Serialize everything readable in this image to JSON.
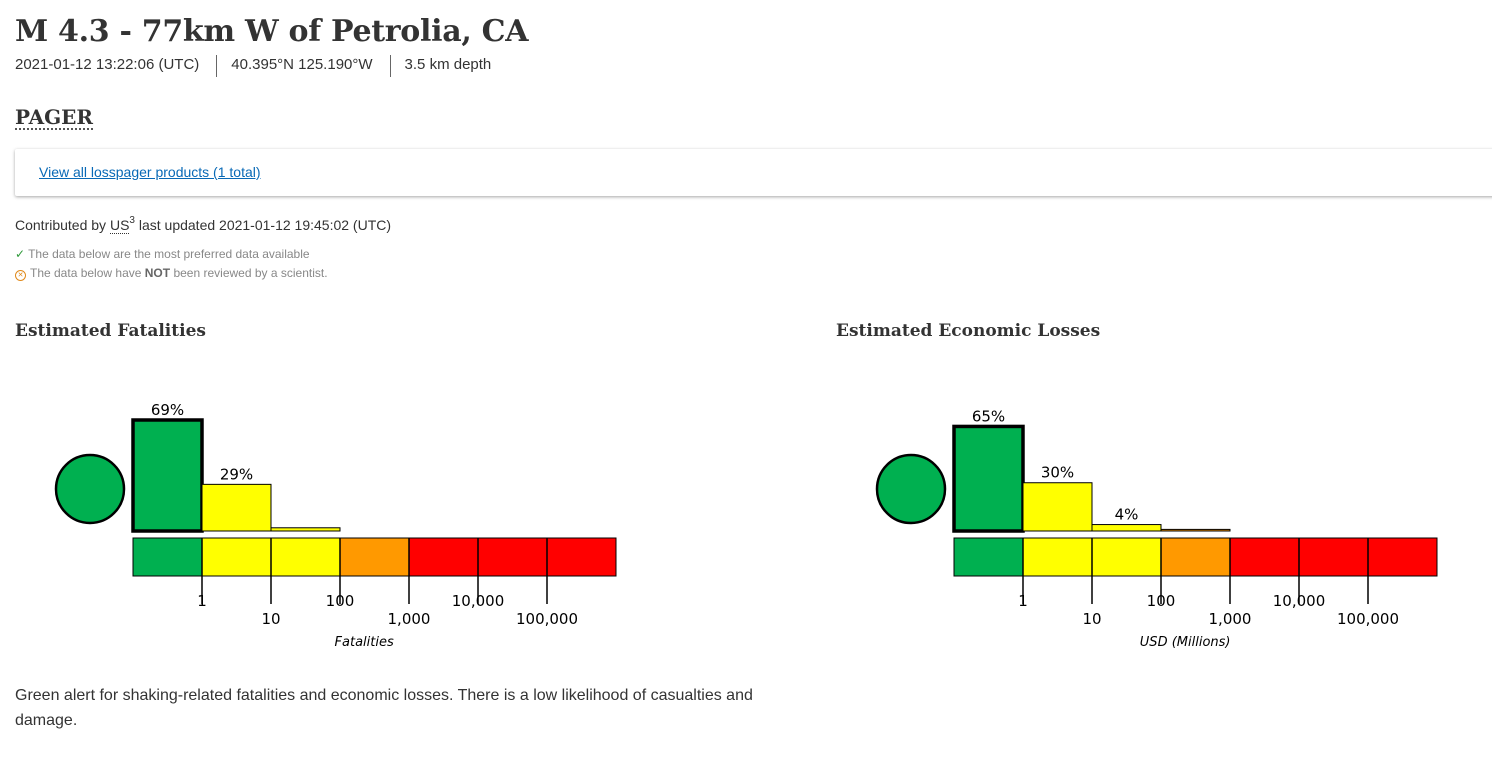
{
  "event": {
    "title": "M 4.3 - 77km W of Petrolia, CA",
    "time": "2021-01-12 13:22:06 (UTC)",
    "location": "40.395°N 125.190°W",
    "depth": "3.5 km depth"
  },
  "section": {
    "title": "PAGER",
    "products_link": "View all losspager products (1 total)",
    "contributed_prefix": "Contributed by",
    "contributor": "US",
    "contributor_sup": "3",
    "last_updated": "last updated 2021-01-12 19:45:02 (UTC)",
    "note_preferred": "The data below are the most preferred data available",
    "note_review_pre": "The data below have",
    "note_review_bold": "NOT",
    "note_review_post": "been reviewed by a scientist."
  },
  "colors": {
    "green": "#00b050",
    "yellow": "#ffff00",
    "orange": "#ff9900",
    "red": "#ff0000",
    "link": "#0869b6"
  },
  "chart_data": [
    {
      "type": "bar",
      "title": "Estimated Fatalities",
      "xlabel": "Fatalities",
      "alert_level": "green",
      "bins": [
        "0",
        "1-10",
        "10-100",
        "100-1,000",
        "1,000-10,000",
        "10,000-100,000",
        "100,000+"
      ],
      "bin_colors": [
        "green",
        "yellow",
        "yellow",
        "orange",
        "red",
        "red",
        "red"
      ],
      "values": [
        69,
        29,
        2,
        0,
        0,
        0,
        0
      ],
      "labels": [
        "69%",
        "29%",
        "",
        "",
        "",
        "",
        ""
      ],
      "highlight_index": 0,
      "tick_labels": [
        "1",
        "10",
        "100",
        "1,000",
        "10,000",
        "100,000"
      ]
    },
    {
      "type": "bar",
      "title": "Estimated Economic Losses",
      "xlabel": "USD (Millions)",
      "alert_level": "green",
      "bins": [
        "0",
        "1-10",
        "10-100",
        "100-1,000",
        "1,000-10,000",
        "10,000-100,000",
        "100,000+"
      ],
      "bin_colors": [
        "green",
        "yellow",
        "yellow",
        "orange",
        "red",
        "red",
        "red"
      ],
      "values": [
        65,
        30,
        4,
        1,
        0,
        0,
        0
      ],
      "labels": [
        "65%",
        "30%",
        "4%",
        "",
        "",
        "",
        ""
      ],
      "highlight_index": 0,
      "tick_labels": [
        "1",
        "10",
        "100",
        "1,000",
        "10,000",
        "100,000"
      ]
    }
  ],
  "summary": "Green alert for shaking-related fatalities and economic losses. There is a low likelihood of casualties and damage."
}
